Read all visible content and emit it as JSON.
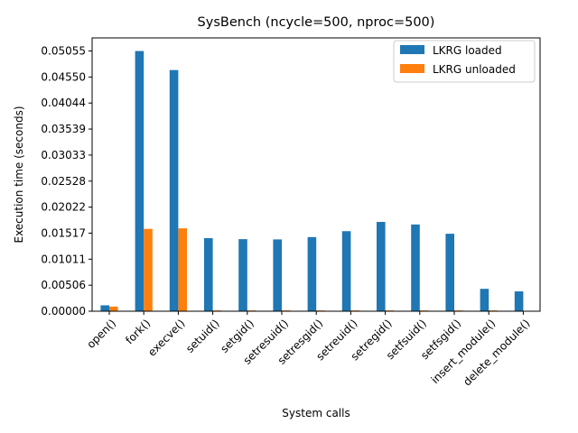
{
  "chart_data": {
    "type": "bar",
    "title": "SysBench (ncycle=500, nproc=500)",
    "xlabel": "System calls",
    "ylabel": "Execution time (seconds)",
    "categories": [
      "open()",
      "fork()",
      "execve()",
      "setuid()",
      "setgid()",
      "setresuid()",
      "setresgid()",
      "setreuid()",
      "setregid()",
      "setfsuid()",
      "setfsgid()",
      "insert_module()",
      "delete_module()"
    ],
    "series": [
      {
        "name": "LKRG loaded",
        "color": "#1f77b4",
        "values": [
          0.00115,
          0.05055,
          0.04685,
          0.0142,
          0.014,
          0.01395,
          0.0144,
          0.01555,
          0.01735,
          0.01685,
          0.01505,
          0.00435,
          0.00385
        ]
      },
      {
        "name": "LKRG unloaded",
        "color": "#ff7f0e",
        "values": [
          0.0009,
          0.016,
          0.0161,
          0.00015,
          0.00015,
          0.00015,
          0.00015,
          0.00015,
          0.00015,
          0.00015,
          0.00015,
          0.00015,
          0.0
        ]
      }
    ],
    "yticks": [
      "0.00000",
      "0.00506",
      "0.01011",
      "0.01517",
      "0.02022",
      "0.02528",
      "0.03033",
      "0.03539",
      "0.04044",
      "0.04550",
      "0.05055"
    ],
    "ytick_step": 0.0050555,
    "ylim": [
      0,
      0.0531
    ],
    "legend_position": "top-right",
    "grid": false
  }
}
